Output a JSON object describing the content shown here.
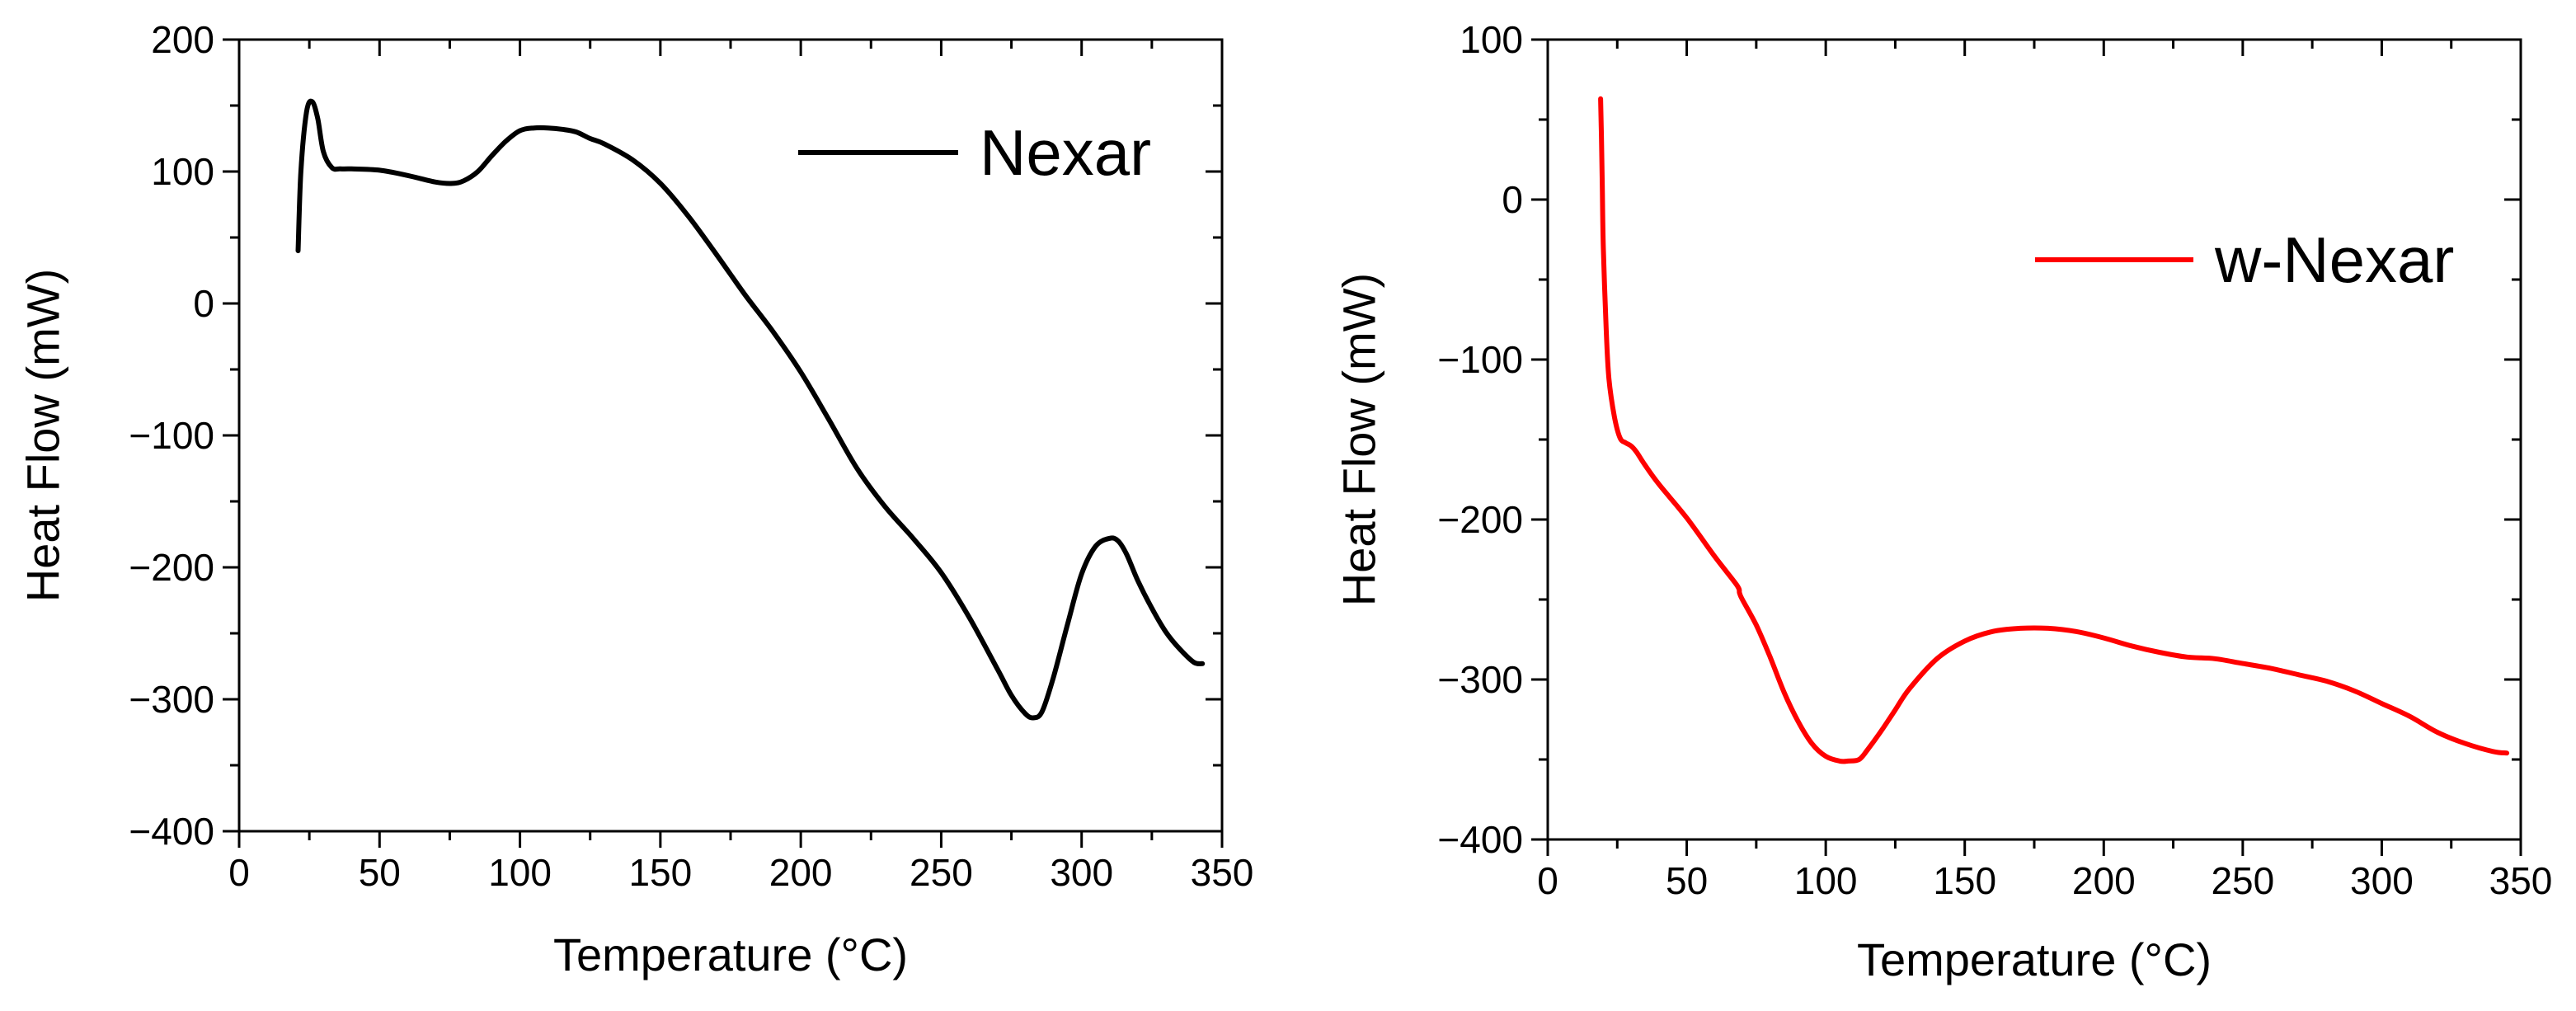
{
  "chart_data": [
    {
      "type": "line",
      "xlabel": "Temperature (°C)",
      "ylabel": "Heat Flow (mW)",
      "xlim": [
        0,
        350
      ],
      "ylim": [
        -400,
        200
      ],
      "xticks": [
        0,
        50,
        100,
        150,
        200,
        250,
        300,
        350
      ],
      "yticks": [
        -400,
        -300,
        -200,
        -100,
        0,
        100,
        200
      ],
      "ytick_labels": [
        "−400",
        "−300",
        "−200",
        "−100",
        "0",
        "100",
        "200"
      ],
      "xtick_labels": [
        "0",
        "50",
        "100",
        "150",
        "200",
        "250",
        "300",
        "350"
      ],
      "legend_position": "top-right",
      "series": [
        {
          "name": "Nexar",
          "color": "#000000",
          "x": [
            21,
            22,
            24,
            26,
            28,
            30,
            33,
            36,
            40,
            50,
            60,
            70,
            76,
            80,
            85,
            90,
            95,
            100,
            105,
            110,
            115,
            120,
            125,
            130,
            140,
            150,
            160,
            170,
            180,
            190,
            200,
            210,
            220,
            230,
            240,
            250,
            260,
            270,
            275,
            280,
            283,
            286,
            290,
            295,
            300,
            305,
            310,
            313,
            316,
            320,
            325,
            330,
            335,
            340,
            343
          ],
          "y": [
            40,
            100,
            145,
            153,
            140,
            115,
            103,
            102,
            102,
            101,
            97,
            92,
            91,
            93,
            100,
            112,
            123,
            131,
            133,
            133,
            132,
            130,
            125,
            121,
            109,
            91,
            66,
            37,
            7,
            -21,
            -52,
            -88,
            -125,
            -154,
            -178,
            -204,
            -238,
            -277,
            -297,
            -311,
            -314,
            -309,
            -283,
            -243,
            -205,
            -184,
            -178,
            -180,
            -190,
            -210,
            -231,
            -249,
            -262,
            -272,
            -273
          ]
        }
      ]
    },
    {
      "type": "line",
      "xlabel": "Temperature (°C)",
      "ylabel": "Heat Flow (mW)",
      "xlim": [
        0,
        350
      ],
      "ylim": [
        -400,
        100
      ],
      "xticks": [
        0,
        50,
        100,
        150,
        200,
        250,
        300,
        350
      ],
      "yticks": [
        -400,
        -300,
        -200,
        -100,
        0,
        100
      ],
      "ytick_labels": [
        "−400",
        "−300",
        "−200",
        "−100",
        "0",
        "100"
      ],
      "xtick_labels": [
        "0",
        "50",
        "100",
        "150",
        "200",
        "250",
        "300",
        "350"
      ],
      "legend_position": "top-right",
      "series": [
        {
          "name": "w-Nexar",
          "color": "#ff0000",
          "x": [
            19,
            19.3,
            19.6,
            20,
            21,
            22,
            24,
            26,
            28,
            30,
            32,
            35,
            40,
            50,
            60,
            68,
            69,
            70,
            75,
            80,
            85,
            90,
            95,
            100,
            105,
            108,
            112,
            115,
            120,
            125,
            130,
            140,
            150,
            160,
            170,
            180,
            190,
            200,
            210,
            220,
            230,
            240,
            250,
            260,
            270,
            280,
            290,
            300,
            310,
            320,
            330,
            340,
            345
          ],
          "y": [
            63,
            40,
            10,
            -30,
            -80,
            -112,
            -136,
            -149,
            -152,
            -154,
            -158,
            -166,
            -178,
            -199,
            -223,
            -241,
            -246,
            -250,
            -266,
            -286,
            -308,
            -326,
            -340,
            -348,
            -351,
            -351,
            -350,
            -344,
            -332,
            -319,
            -306,
            -287,
            -276,
            -270,
            -268,
            -268,
            -270,
            -274,
            -279,
            -283,
            -286,
            -287,
            -290,
            -293,
            -297,
            -301,
            -307,
            -315,
            -323,
            -333,
            -340,
            -345,
            -346
          ]
        }
      ]
    }
  ]
}
